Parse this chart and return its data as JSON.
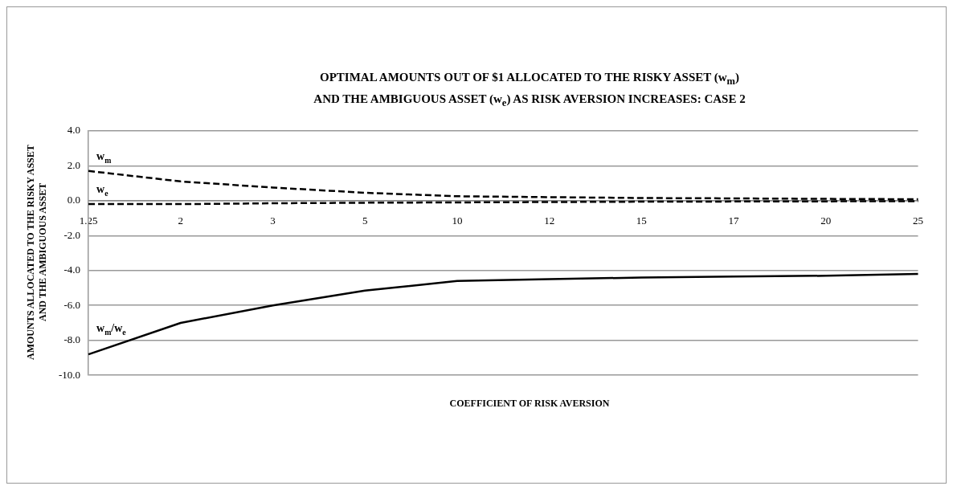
{
  "chart_data": {
    "type": "line",
    "title": "OPTIMAL AMOUNTS OUT OF $1 ALLOCATED TO THE RISKY ASSET (w$_{m}$)\nAND THE AMBIGUOUS ASSET (w$_{e}$) AS RISK AVERSION  INCREASES: CASE 2",
    "xlabel": "COEFFICIENT OF RISK AVERSION",
    "ylabel": "AMOUNTS ALLOCATED TO THE RISKY ASSET\nAND THE AMBIGUOUS ASSET",
    "categories": [
      "1.25",
      "2",
      "3",
      "5",
      "10",
      "12",
      "15",
      "17",
      "20",
      "25"
    ],
    "series": [
      {
        "name": "w$_{m}$",
        "color": "#000000",
        "line_style": "dashed",
        "values": [
          1.7,
          1.1,
          0.75,
          0.45,
          0.25,
          0.2,
          0.15,
          0.13,
          0.1,
          0.08
        ]
      },
      {
        "name": "w$_{e}$",
        "color": "#000000",
        "line_style": "dashed",
        "values": [
          -0.2,
          -0.2,
          -0.15,
          -0.12,
          -0.1,
          -0.08,
          -0.06,
          -0.05,
          -0.04,
          -0.03
        ]
      },
      {
        "name": "w$_{m}$/w$_{e}$",
        "color": "#000000",
        "line_style": "solid",
        "values": [
          -8.8,
          -7.0,
          -6.0,
          -5.15,
          -4.6,
          -4.5,
          -4.4,
          -4.35,
          -4.3,
          -4.2
        ]
      }
    ],
    "ylim": [
      -10,
      4
    ],
    "yticks": [
      {
        "value": 4,
        "label": "4.0"
      },
      {
        "value": 2,
        "label": "2.0"
      },
      {
        "value": 0,
        "label": "0.0"
      },
      {
        "value": -2,
        "label": "-2.0"
      },
      {
        "value": -4,
        "label": "-4.0"
      },
      {
        "value": -6,
        "label": "-6.0"
      },
      {
        "value": -8,
        "label": "-8.0"
      },
      {
        "value": -10,
        "label": "-10.0"
      }
    ],
    "grid": "y",
    "legend": false,
    "marker": "none"
  }
}
